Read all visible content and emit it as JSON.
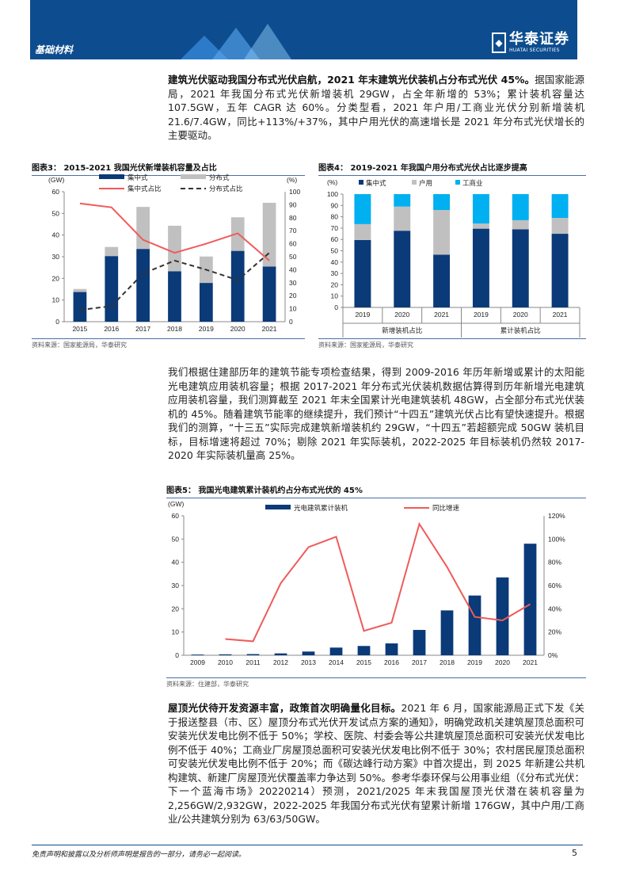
{
  "header": {
    "section": "基础材料",
    "logo_cn": "华泰证券",
    "logo_en": "HUATAI SECURITIES"
  },
  "para1": {
    "lead": "建筑光伏驱动我国分布式光伏启航，2021 年末建筑光伏装机占分布式光伏 45%。",
    "body": "据国家能源局，2021 年我国分布式光伏新增装机 29GW，占全年新增的 53%；累计装机容量达 107.5GW，五年 CAGR 达 60%。分类型看，2021 年户用/工商业光伏分别新增装机 21.6/7.4GW，同比+113%/+37%，其中户用光伏的高速增长是 2021 年分布式光伏增长的主要驱动。"
  },
  "fig3": {
    "title": "图表3：  2015-2021 我国光伏新增装机容量及占比",
    "source": "资料来源：国家能源局，华泰研究"
  },
  "fig4": {
    "title": "图表4：  2019-2021 年我国户用分布式光伏占比逐步提高",
    "source": "资料来源：国家能源局，华泰研究"
  },
  "para2": {
    "body": "我们根据住建部历年的建筑节能专项检查结果，得到 2009-2016 年历年新增或累计的太阳能光电建筑应用装机容量；根据 2017-2021 年分布式光伏装机数据估算得到历年新增光电建筑应用装机容量，我们测算截至 2021 年末全国累计光电建筑装机 48GW，占全部分布式光伏装机的 45%。随着建筑节能率的继续提升，我们预计“十四五”建筑光伏占比有望快速提升。根据我们的测算，“十三五”实际完成建筑新增装机约 29GW，“十四五”若超额完成 50GW 装机目标，目标增速将超过 70%；剔除 2021 年实际装机，2022-2025 年目标装机仍然较 2017-2020 年实际装机量高 25%。"
  },
  "fig5": {
    "title": "图表5：  我国光电建筑累计装机约占分布式光伏的 45%",
    "source": "资料来源：住建部，华泰研究"
  },
  "para3": {
    "lead": "屋顶光伏待开发资源丰富，政策首次明确量化目标。",
    "body": "2021 年 6 月，国家能源局正式下发《关于报送整县（市、区）屋顶分布式光伏开发试点方案的通知》，明确党政机关建筑屋顶总面积可安装光伏发电比例不低于 50%；学校、医院、村委会等公共建筑屋顶总面积可安装光伏发电比例不低于 40%；工商业厂房屋顶总面积可安装光伏发电比例不低于 30%；农村居民屋顶总面积可安装光伏发电比例不低于 20%；而《碳达峰行动方案》中首次提出，到 2025 年新建公共机构建筑、新建厂房屋顶光伏覆盖率力争达到 50%。参考华泰环保与公用事业组（《分布式光伏：下一个蓝海市场》20220214）预测，2021/2025 年末我国屋顶光伏潜在装机容量为 2,256GW/2,932GW，2022-2025 年我国分布式光伏有望累计新增 176GW，其中户用/工商业/公共建筑分别为 63/63/50GW。"
  },
  "footer": {
    "disclaimer": "免责声明和披露以及分析师声明是报告的一部分，请务必一起阅读。",
    "page": "5"
  },
  "chart_data": [
    {
      "type": "bar",
      "title": "2015-2021 我国光伏新增装机容量及占比",
      "ylabel": "(GW)",
      "y2label": "(%)",
      "ylim": [
        0,
        60
      ],
      "y2lim": [
        0,
        100
      ],
      "categories": [
        "2015",
        "2016",
        "2017",
        "2018",
        "2019",
        "2020",
        "2021"
      ],
      "series": [
        {
          "name": "集中式",
          "kind": "stacked-bar",
          "color": "#0a3a78",
          "values": [
            13.7,
            30.3,
            33.6,
            23.3,
            17.9,
            32.7,
            25.5
          ]
        },
        {
          "name": "分布式",
          "kind": "stacked-bar",
          "color": "#c0c0c0",
          "values": [
            1.4,
            4.2,
            19.4,
            21.0,
            12.2,
            15.5,
            29.4
          ]
        },
        {
          "name": "集中式占比",
          "kind": "line",
          "axis": "right",
          "color": "#f05a5a",
          "values": [
            91,
            88,
            63,
            53,
            60,
            68,
            47
          ]
        },
        {
          "name": "分布式占比",
          "kind": "dashed-line",
          "axis": "right",
          "color": "#333333",
          "values": [
            9,
            12,
            37,
            47,
            40,
            32,
            53
          ]
        }
      ],
      "yticks": [
        0,
        10,
        20,
        30,
        40,
        50,
        60
      ],
      "y2ticks": [
        0,
        10,
        20,
        30,
        40,
        50,
        60,
        70,
        80,
        90,
        100
      ]
    },
    {
      "type": "bar",
      "title": "2019-2021 年我国户用分布式光伏占比逐步提高",
      "ylabel": "(%)",
      "ylim": [
        0,
        100
      ],
      "categories": [
        "2019",
        "2020",
        "2021",
        "2019",
        "2020",
        "2021"
      ],
      "groups": [
        "新增装机占比",
        "累计装机占比"
      ],
      "series": [
        {
          "name": "集中式",
          "color": "#0a3a78",
          "values": [
            59.5,
            67.7,
            46.5,
            69.5,
            69,
            65
          ]
        },
        {
          "name": "户用",
          "color": "#c0c0c0",
          "values": [
            14,
            21.3,
            39.5,
            4.5,
            8,
            14
          ]
        },
        {
          "name": "工商业",
          "color": "#00b0f0",
          "values": [
            26.5,
            11,
            14,
            26,
            23,
            21
          ]
        }
      ],
      "yticks": [
        0,
        10,
        20,
        30,
        40,
        50,
        60,
        70,
        80,
        90,
        100
      ]
    },
    {
      "type": "bar",
      "title": "我国光电建筑累计装机约占分布式光伏的 45%",
      "ylabel": "(GW)",
      "ylim": [
        0,
        60
      ],
      "y2lim": [
        0,
        120
      ],
      "categories": [
        "2009",
        "2010",
        "2011",
        "2012",
        "2013",
        "2014",
        "2015",
        "2016",
        "2017",
        "2018",
        "2019",
        "2020",
        "2021"
      ],
      "series": [
        {
          "name": "光电建筑累计装机",
          "kind": "bar",
          "color": "#0a3a78",
          "values": [
            0.3,
            0.4,
            0.5,
            0.8,
            1.6,
            3.3,
            4.0,
            5.1,
            10.9,
            19.3,
            25.7,
            33.5,
            48.0
          ]
        },
        {
          "name": "同比增速",
          "kind": "line",
          "axis": "right",
          "color": "#f05a5a",
          "values": [
            null,
            14,
            12,
            62,
            93,
            102,
            21,
            28,
            113,
            76,
            33,
            30,
            44
          ]
        }
      ],
      "yticks": [
        0,
        10,
        20,
        30,
        40,
        50,
        60
      ],
      "y2ticks": [
        "0%",
        "20%",
        "40%",
        "60%",
        "80%",
        "100%",
        "120%"
      ]
    }
  ]
}
